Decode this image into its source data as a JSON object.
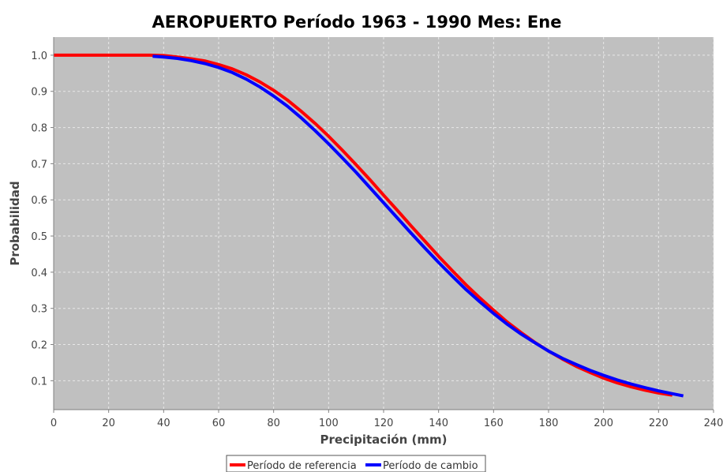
{
  "chart_data": {
    "type": "line",
    "title": "AEROPUERTO Período 1963 - 1990  Mes: Ene",
    "xlabel": "Precipitación (mm)",
    "ylabel": "Probabilidad",
    "xlim": [
      0,
      240
    ],
    "ylim": [
      0.02,
      1.05
    ],
    "xticks": [
      0,
      20,
      40,
      60,
      80,
      100,
      120,
      140,
      160,
      180,
      200,
      220,
      240
    ],
    "yticks": [
      0.1,
      0.2,
      0.3,
      0.4,
      0.5,
      0.6,
      0.7,
      0.8,
      0.9,
      1.0
    ],
    "ytick_labels": [
      "0.1",
      "0.2",
      "0.3",
      "0.4",
      "0.5",
      "0.6",
      "0.7",
      "0.8",
      "0.9",
      "1.0"
    ],
    "grid": true,
    "legend_position": "bottom-center",
    "background_color": "#c0c0c0",
    "series": [
      {
        "name": "Período de referencia",
        "color": "#ff0000",
        "x": [
          0,
          35,
          40,
          45,
          50,
          55,
          60,
          65,
          70,
          75,
          80,
          85,
          90,
          95,
          100,
          105,
          110,
          115,
          120,
          125,
          130,
          135,
          140,
          145,
          150,
          155,
          160,
          165,
          170,
          175,
          180,
          185,
          190,
          195,
          200,
          205,
          210,
          215,
          220,
          225
        ],
        "y": [
          1.0,
          1.0,
          0.999,
          0.995,
          0.99,
          0.984,
          0.974,
          0.962,
          0.946,
          0.926,
          0.903,
          0.876,
          0.845,
          0.812,
          0.776,
          0.737,
          0.697,
          0.656,
          0.613,
          0.571,
          0.528,
          0.486,
          0.444,
          0.404,
          0.365,
          0.329,
          0.295,
          0.262,
          0.233,
          0.206,
          0.182,
          0.16,
          0.14,
          0.123,
          0.107,
          0.094,
          0.083,
          0.074,
          0.066,
          0.06
        ]
      },
      {
        "name": "Período de cambio",
        "color": "#0000ff",
        "x": [
          36,
          40,
          45,
          50,
          55,
          60,
          65,
          70,
          75,
          80,
          85,
          90,
          95,
          100,
          105,
          110,
          115,
          120,
          125,
          130,
          135,
          140,
          145,
          150,
          155,
          160,
          165,
          170,
          175,
          180,
          185,
          190,
          195,
          200,
          205,
          210,
          215,
          220,
          225,
          229
        ],
        "y": [
          0.997,
          0.995,
          0.991,
          0.985,
          0.977,
          0.966,
          0.952,
          0.934,
          0.912,
          0.887,
          0.859,
          0.827,
          0.792,
          0.755,
          0.716,
          0.676,
          0.634,
          0.592,
          0.55,
          0.508,
          0.467,
          0.427,
          0.389,
          0.352,
          0.318,
          0.286,
          0.256,
          0.229,
          0.205,
          0.182,
          0.162,
          0.145,
          0.129,
          0.115,
          0.102,
          0.091,
          0.081,
          0.072,
          0.064,
          0.058
        ]
      }
    ]
  }
}
